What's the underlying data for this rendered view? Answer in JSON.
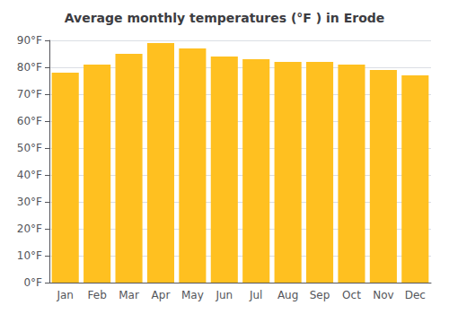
{
  "chart_data": {
    "type": "bar",
    "title": "Average monthly temperatures (°F ) in Erode",
    "categories": [
      "Jan",
      "Feb",
      "Mar",
      "Apr",
      "May",
      "Jun",
      "Jul",
      "Aug",
      "Sep",
      "Oct",
      "Nov",
      "Dec"
    ],
    "values": [
      78,
      81,
      85,
      89,
      87,
      84,
      83,
      82,
      82,
      81,
      79,
      77
    ],
    "color": "#FFC020",
    "ylim": [
      0,
      90
    ],
    "yticks": [
      {
        "value": 0,
        "label": "0°F"
      },
      {
        "value": 10,
        "label": "10°F"
      },
      {
        "value": 20,
        "label": "20°F"
      },
      {
        "value": 30,
        "label": "30°F"
      },
      {
        "value": 40,
        "label": "40°F"
      },
      {
        "value": 50,
        "label": "50°F"
      },
      {
        "value": 60,
        "label": "60°F"
      },
      {
        "value": 70,
        "label": "70°F"
      },
      {
        "value": 80,
        "label": "80°F"
      },
      {
        "value": 90,
        "label": "90°F"
      }
    ],
    "grid": true
  }
}
